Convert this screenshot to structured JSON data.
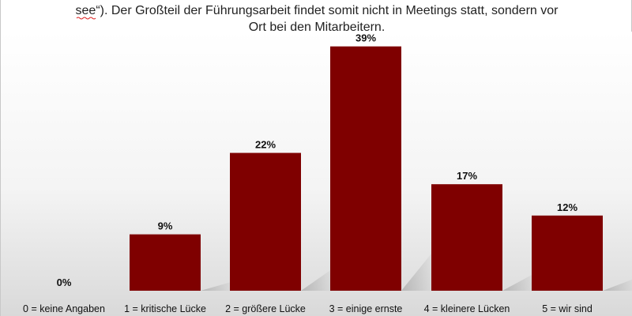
{
  "caption": {
    "line1": "see“). Der Großteil der Führungsarbeit findet somit nicht in Meetings statt, sondern vor",
    "line2": "Ort bei den Mitarbeitern."
  },
  "colors": {
    "bar": "#7f0000",
    "background_top": "#ffffff",
    "background_bottom": "#d9d9d9"
  },
  "chart_data": {
    "type": "bar",
    "title": "",
    "xlabel": "",
    "ylabel": "",
    "ylim": [
      0,
      40
    ],
    "grid": false,
    "categories": [
      "0 = keine Angaben",
      "1 = kritische Lücke",
      "2 = größere Lücke",
      "3 = einige ernste",
      "4 = kleinere Lücken",
      "5 = wir sind"
    ],
    "values": [
      0,
      9,
      22,
      39,
      17,
      12
    ],
    "value_labels": [
      "0%",
      "9%",
      "22%",
      "39%",
      "17%",
      "12%"
    ]
  }
}
